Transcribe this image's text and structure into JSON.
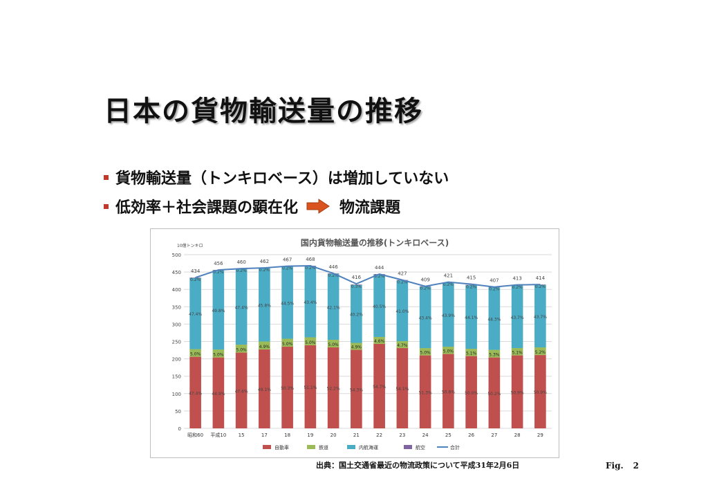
{
  "slide": {
    "title": "日本の貨物輸送量の推移",
    "bullets": [
      {
        "text": "貨物輸送量（トンキロベース）は増加していない"
      },
      {
        "text": "低効率＋社会課題の顕在化",
        "after_arrow": "物流課題"
      }
    ],
    "source": "出典：国土交通省最近の物流政策について平成31年2月6日",
    "fig_prefix": "Fig.",
    "fig_number": "2",
    "colors": {
      "bullet": "#c0392b",
      "arrow": "#d9541e"
    }
  },
  "chart_data": {
    "type": "bar",
    "stacked": true,
    "title": "国内貨物輸送量の推移(トンキロベース)",
    "unit_label": "10億トンキロ",
    "ylim": [
      0,
      500
    ],
    "yticks": [
      0,
      50,
      100,
      150,
      200,
      250,
      300,
      350,
      400,
      450,
      500
    ],
    "grid": true,
    "legend_position": "bottom",
    "categories": [
      "昭和60",
      "平成10",
      "15",
      "17",
      "18",
      "19",
      "20",
      "21",
      "22",
      "23",
      "24",
      "25",
      "26",
      "27",
      "28",
      "29"
    ],
    "series": [
      {
        "name": "自動車",
        "color": "#c0504d",
        "values": [
          206,
          204,
          218,
          227,
          235,
          239,
          233,
          226,
          243,
          231,
          210,
          214,
          208,
          204,
          210,
          211
        ],
        "labels": [
          "47.4%",
          "44.9%",
          "47.6%",
          "49.1%",
          "50.3%",
          "51.1%",
          "52.2%",
          "54.3%",
          "54.7%",
          "54.1%",
          "51.3%",
          "50.8%",
          "50.0%",
          "50.2%",
          "50.9%",
          "50.9%"
        ]
      },
      {
        "name": "鉄道",
        "color": "#9bbb59",
        "values": [
          22,
          23,
          23,
          23,
          23,
          23,
          22,
          20,
          20,
          20,
          21,
          21,
          21,
          22,
          21,
          22
        ],
        "labels": [
          "5.0%",
          "5.0%",
          "5.0%",
          "4.9%",
          "5.0%",
          "5.0%",
          "5.0%",
          "4.9%",
          "4.6%",
          "4.7%",
          "5.0%",
          "5.0%",
          "5.1%",
          "5.3%",
          "5.1%",
          "5.2%"
        ]
      },
      {
        "name": "内航海運",
        "color": "#4bacc6",
        "values": [
          205,
          228,
          218,
          211,
          208,
          205,
          190,
          167,
          180,
          175,
          177,
          184,
          183,
          180,
          180,
          180
        ],
        "labels": [
          "47.4%",
          "49.8%",
          "47.4%",
          "45.8%",
          "44.5%",
          "43.4%",
          "42.1%",
          "40.2%",
          "40.5%",
          "41.0%",
          "43.4%",
          "43.9%",
          "44.1%",
          "44.3%",
          "43.7%",
          "43.7%"
        ]
      },
      {
        "name": "航空",
        "color": "#8064a2",
        "values": [
          1,
          1,
          1,
          1,
          1,
          1,
          1,
          1,
          1,
          1,
          1,
          1,
          1,
          1,
          1,
          1
        ],
        "labels": [
          "0.2%",
          "0.2%",
          "0.2%",
          "0.2%",
          "0.2%",
          "0.2%",
          "0.2%",
          "0.3%",
          "0.2%",
          "0.2%",
          "0.2%",
          "0.2%",
          "0.2%",
          "0.2%",
          "0.2%",
          "0.2%"
        ]
      }
    ],
    "total": {
      "name": "合計",
      "color": "#4f81bd",
      "values": [
        434,
        456,
        460,
        462,
        467,
        468,
        446,
        416,
        444,
        427,
        409,
        421,
        415,
        407,
        413,
        414
      ]
    }
  }
}
